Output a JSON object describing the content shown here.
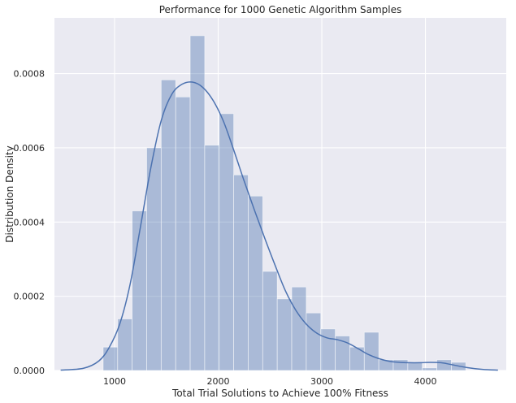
{
  "chart_data": {
    "type": "bar",
    "title": "Performance for 1000 Genetic Algorithm Samples",
    "xlabel": "Total Trial Solutions to Achieve 100% Fitness",
    "ylabel": "Distribution Density",
    "xlim": [
      420,
      4780
    ],
    "ylim": [
      0,
      0.00095
    ],
    "xticks": [
      1000,
      2000,
      3000,
      4000
    ],
    "xtick_labels": [
      "1000",
      "2000",
      "3000",
      "4000"
    ],
    "yticks": [
      0,
      0.0002,
      0.0004,
      0.0006,
      0.0008
    ],
    "ytick_labels": [
      "0.0000",
      "0.0002",
      "0.0004",
      "0.0006",
      "0.0008"
    ],
    "grid": true,
    "colors": {
      "background": "#eaeaf2",
      "grid": "#ffffff",
      "bar_fill": "#4c72b0",
      "bar_opacity": 0.4,
      "kde_line": "#4c72b0"
    },
    "histogram": {
      "bin_edges": [
        890,
        1030,
        1170,
        1310,
        1450,
        1590,
        1730,
        1870,
        2010,
        2150,
        2290,
        2430,
        2570,
        2710,
        2850,
        2990,
        3130,
        3270,
        3410,
        3550,
        3690,
        3830,
        3970,
        4110,
        4250
      ],
      "densities": [
        6.3e-05,
        0.000139,
        0.00043,
        0.0006,
        0.000783,
        0.000737,
        0.000902,
        0.000607,
        0.000692,
        0.000527,
        0.00047,
        0.000267,
        0.000193,
        0.000225,
        0.000155,
        0.000112,
        9.3e-05,
        6.3e-05,
        0.000103,
        2.9e-05,
        2.9e-05,
        2.2e-05,
        7e-06,
        2.9e-05,
        2.2e-05
      ]
    },
    "kde": {
      "x": [
        480,
        700,
        850,
        950,
        1050,
        1150,
        1250,
        1350,
        1450,
        1550,
        1650,
        1750,
        1850,
        1950,
        2050,
        2150,
        2250,
        2350,
        2450,
        2550,
        2650,
        2750,
        2850,
        2950,
        3050,
        3150,
        3250,
        3350,
        3450,
        3550,
        3650,
        3750,
        3850,
        3950,
        4050,
        4150,
        4250,
        4400,
        4550,
        4700
      ],
      "y": [
        1e-06,
        6e-06,
        2.6e-05,
        6.3e-05,
        0.000125,
        0.000232,
        0.000387,
        0.000546,
        0.000673,
        0.000743,
        0.000771,
        0.000777,
        0.000763,
        0.000728,
        0.000672,
        0.000594,
        0.000511,
        0.000432,
        0.000356,
        0.000283,
        0.000214,
        0.000162,
        0.000125,
        0.000101,
        8.8e-05,
        8.3e-05,
        7.4e-05,
        5.9e-05,
        4.3e-05,
        3.2e-05,
        2.5e-05,
        2.2e-05,
        2.1e-05,
        2.1e-05,
        2.2e-05,
        2.1e-05,
        1.6e-05,
        8e-06,
        3e-06,
        1e-06
      ]
    }
  }
}
